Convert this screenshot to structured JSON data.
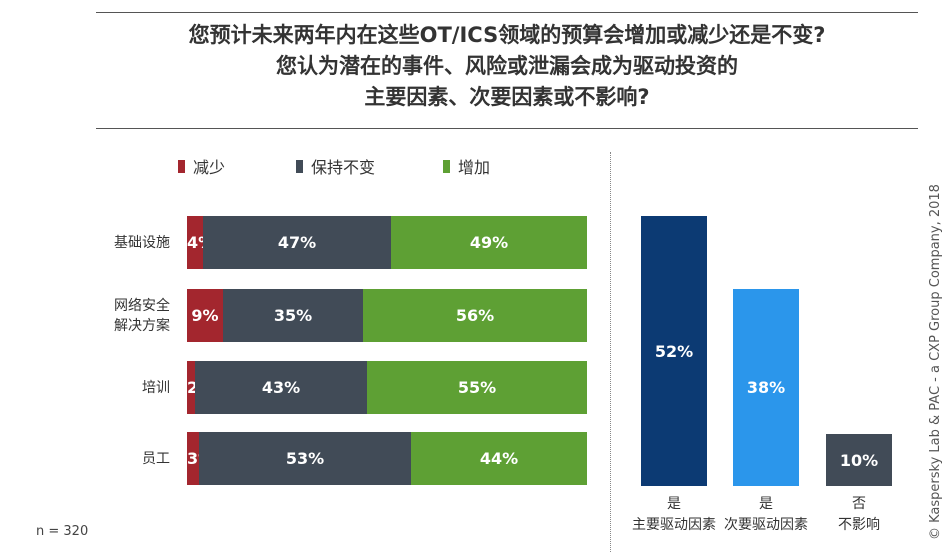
{
  "title": {
    "line1": "您预计未来两年内在这些OT/ICS领域的预算会增加或减少还是不变?",
    "line2": "您认为潜在的事件、风险或泄漏会成为驱动投资的",
    "line3": "主要因素、次要因素或不影响?"
  },
  "note": "n = 320",
  "credit": "© Kaspersky Lab & PAC - a CXP Group Company, 2018",
  "chart_data": [
    {
      "type": "bar",
      "orientation": "horizontal",
      "stacked": true,
      "legend_position": "top",
      "categories": [
        "基础设施",
        "网络安全\n解决方案",
        "培训",
        "员工"
      ],
      "categories_display": [
        [
          "基础设施"
        ],
        [
          "网络安全",
          "解决方案"
        ],
        [
          "培训"
        ],
        [
          "员工"
        ]
      ],
      "series": [
        {
          "name": "减少",
          "color": "#a3262e",
          "values": [
            4,
            9,
            2,
            3
          ],
          "labels": [
            "4%",
            "9%",
            "2%",
            "3%"
          ]
        },
        {
          "name": "保持不变",
          "color": "#414b57",
          "values": [
            47,
            35,
            43,
            53
          ],
          "labels": [
            "47%",
            "35%",
            "43%",
            "53%"
          ]
        },
        {
          "name": "增加",
          "color": "#5ea034",
          "values": [
            49,
            56,
            55,
            44
          ],
          "labels": [
            "49%",
            "56%",
            "55%",
            "44%"
          ]
        }
      ],
      "xlim": [
        0,
        100
      ],
      "grid": false
    },
    {
      "type": "bar",
      "orientation": "vertical",
      "categories": [
        "是\n主要驱动因素",
        "是\n次要驱动因素",
        "否\n不影响"
      ],
      "categories_display": [
        [
          "是",
          "主要驱动因素"
        ],
        [
          "是",
          "次要驱动因素"
        ],
        [
          "否",
          "不影响"
        ]
      ],
      "values": [
        52,
        38,
        10
      ],
      "labels": [
        "52%",
        "38%",
        "10%"
      ],
      "colors": [
        "#0c3a73",
        "#2b96eb",
        "#414b57"
      ],
      "ylim": [
        0,
        60
      ],
      "grid": false
    }
  ]
}
